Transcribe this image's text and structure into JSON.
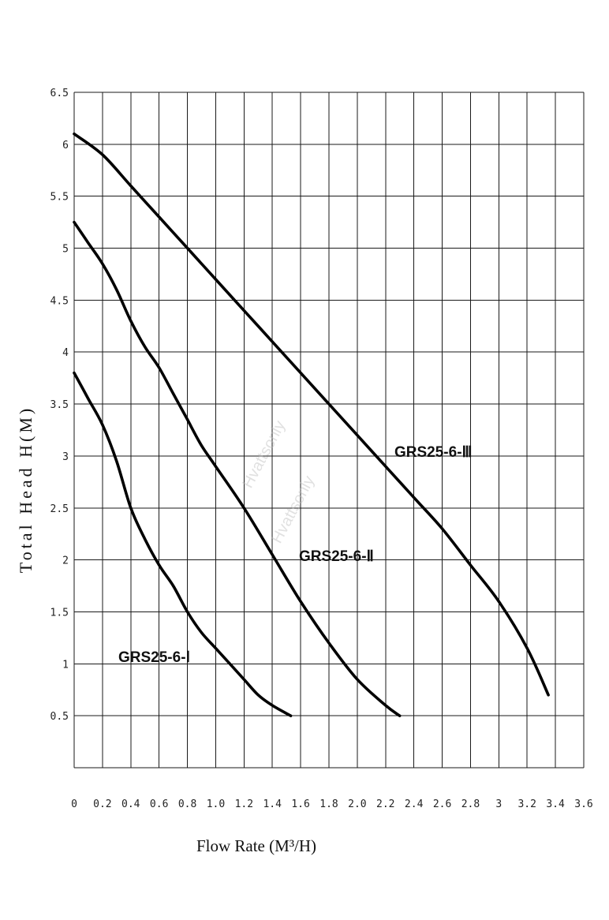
{
  "chart_data": {
    "type": "line",
    "xlabel": "Flow Rate (M³/H)",
    "ylabel": "Total Head H(M)",
    "xlim": [
      0,
      3.6
    ],
    "ylim": [
      0,
      6.5
    ],
    "x_ticks": [
      "0",
      "0.2",
      "0.4",
      "0.6",
      "0.8",
      "1.0",
      "1.2",
      "1.4",
      "1.6",
      "1.8",
      "2.0",
      "2.2",
      "2.4",
      "2.6",
      "2.8",
      "3",
      "3.2",
      "3.4",
      "3.6"
    ],
    "y_ticks": [
      "0.5",
      "1",
      "1.5",
      "2",
      "2.5",
      "3",
      "3.5",
      "4",
      "4.5",
      "5",
      "5.5",
      "6",
      "6.5"
    ],
    "grid": true,
    "series": [
      {
        "name": "GRS25-6-Ⅰ",
        "points": [
          [
            0,
            3.8
          ],
          [
            0.1,
            3.55
          ],
          [
            0.2,
            3.3
          ],
          [
            0.3,
            2.95
          ],
          [
            0.4,
            2.5
          ],
          [
            0.5,
            2.2
          ],
          [
            0.6,
            1.95
          ],
          [
            0.7,
            1.75
          ],
          [
            0.8,
            1.5
          ],
          [
            0.9,
            1.3
          ],
          [
            1.0,
            1.15
          ],
          [
            1.1,
            1.0
          ],
          [
            1.2,
            0.85
          ],
          [
            1.3,
            0.7
          ],
          [
            1.4,
            0.6
          ],
          [
            1.53,
            0.5
          ]
        ]
      },
      {
        "name": "GRS25-6-Ⅱ",
        "points": [
          [
            0,
            5.25
          ],
          [
            0.1,
            5.05
          ],
          [
            0.2,
            4.85
          ],
          [
            0.3,
            4.6
          ],
          [
            0.4,
            4.3
          ],
          [
            0.5,
            4.05
          ],
          [
            0.6,
            3.85
          ],
          [
            0.7,
            3.6
          ],
          [
            0.8,
            3.35
          ],
          [
            0.9,
            3.1
          ],
          [
            1.0,
            2.9
          ],
          [
            1.2,
            2.5
          ],
          [
            1.4,
            2.05
          ],
          [
            1.6,
            1.6
          ],
          [
            1.8,
            1.2
          ],
          [
            2.0,
            0.85
          ],
          [
            2.2,
            0.6
          ],
          [
            2.3,
            0.5
          ]
        ]
      },
      {
        "name": "GRS25-6-Ⅲ",
        "points": [
          [
            0,
            6.1
          ],
          [
            0.2,
            5.9
          ],
          [
            0.4,
            5.6
          ],
          [
            0.6,
            5.3
          ],
          [
            0.8,
            5.0
          ],
          [
            1.0,
            4.7
          ],
          [
            1.2,
            4.4
          ],
          [
            1.4,
            4.1
          ],
          [
            1.6,
            3.8
          ],
          [
            1.8,
            3.5
          ],
          [
            2.0,
            3.2
          ],
          [
            2.2,
            2.9
          ],
          [
            2.4,
            2.6
          ],
          [
            2.6,
            2.3
          ],
          [
            2.8,
            1.95
          ],
          [
            3.0,
            1.6
          ],
          [
            3.2,
            1.15
          ],
          [
            3.35,
            0.7
          ]
        ]
      }
    ],
    "annotations": [
      "GRS25-6-Ⅰ",
      "GRS25-6-Ⅱ",
      "GRS25-6-Ⅲ"
    ]
  },
  "watermark": "Hvattsonly"
}
